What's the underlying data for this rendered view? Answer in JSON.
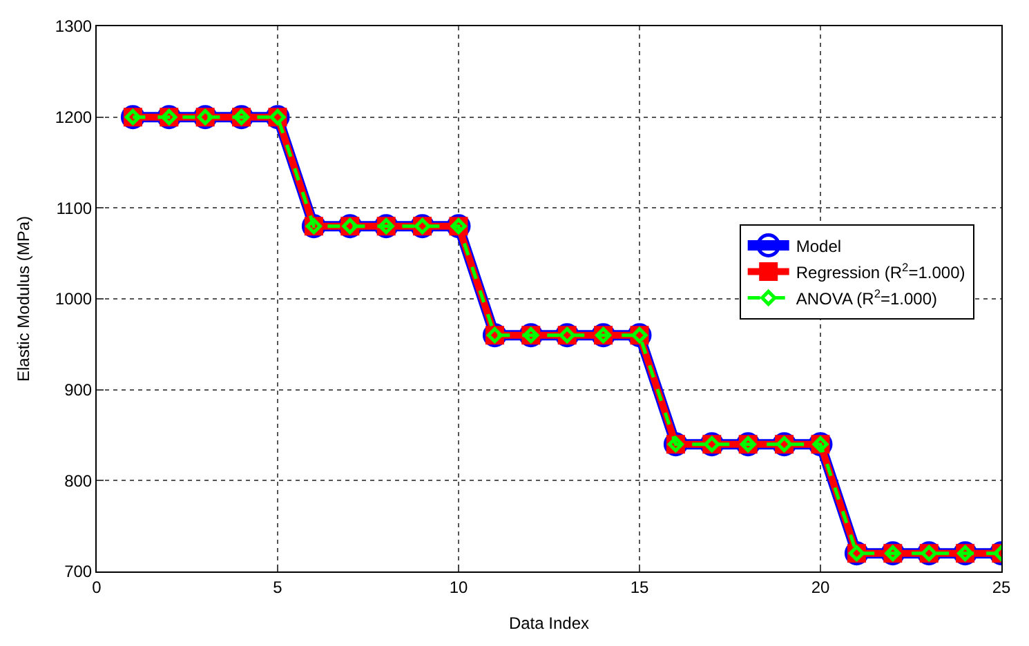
{
  "chart_data": {
    "type": "line",
    "xlabel": "Data Index",
    "ylabel": "Elastic Modulus (MPa)",
    "x": [
      1,
      2,
      3,
      4,
      5,
      6,
      7,
      8,
      9,
      10,
      11,
      12,
      13,
      14,
      15,
      16,
      17,
      18,
      19,
      20,
      21,
      22,
      23,
      24,
      25
    ],
    "series": [
      {
        "name": "Model",
        "color": "#0000ff",
        "marker": "circle",
        "line_style": "solid",
        "values": [
          1200,
          1200,
          1200,
          1200,
          1200,
          1080,
          1080,
          1080,
          1080,
          1080,
          960,
          960,
          960,
          960,
          960,
          840,
          840,
          840,
          840,
          840,
          720,
          720,
          720,
          720,
          720
        ]
      },
      {
        "name": "Regression (R$^{2}$=1.000)",
        "color": "#ff0000",
        "marker": "square",
        "line_style": "solid",
        "values": [
          1200,
          1200,
          1200,
          1200,
          1200,
          1080,
          1080,
          1080,
          1080,
          1080,
          960,
          960,
          960,
          960,
          960,
          840,
          840,
          840,
          840,
          840,
          720,
          720,
          720,
          720,
          720
        ]
      },
      {
        "name": "ANOVA (R$^{2}$=1.000)",
        "color": "#00ff00",
        "marker": "diamond",
        "line_style": "dashed",
        "values": [
          1200,
          1200,
          1200,
          1200,
          1200,
          1080,
          1080,
          1080,
          1080,
          1080,
          960,
          960,
          960,
          960,
          960,
          840,
          840,
          840,
          840,
          840,
          720,
          720,
          720,
          720,
          720
        ]
      }
    ],
    "xlim": [
      0,
      25
    ],
    "xticks": [
      0,
      5,
      10,
      15,
      20,
      25
    ],
    "ylim": [
      700,
      1300
    ],
    "yticks": [
      700,
      800,
      900,
      1000,
      1100,
      1200,
      1300
    ],
    "grid": true,
    "legend": "right"
  }
}
